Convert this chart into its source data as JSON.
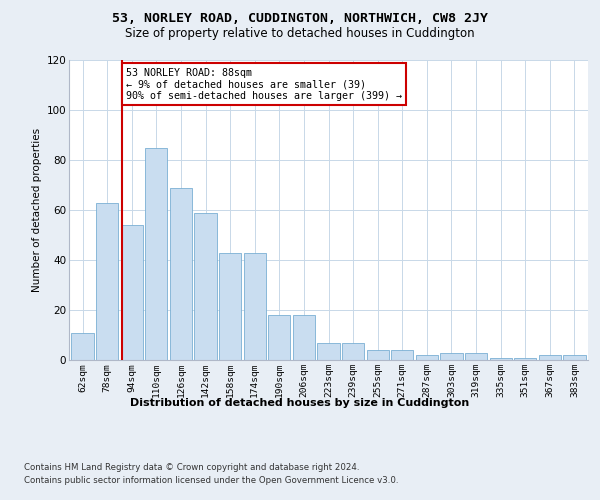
{
  "title": "53, NORLEY ROAD, CUDDINGTON, NORTHWICH, CW8 2JY",
  "subtitle": "Size of property relative to detached houses in Cuddington",
  "xlabel": "Distribution of detached houses by size in Cuddington",
  "ylabel": "Number of detached properties",
  "categories": [
    "62sqm",
    "78sqm",
    "94sqm",
    "110sqm",
    "126sqm",
    "142sqm",
    "158sqm",
    "174sqm",
    "190sqm",
    "206sqm",
    "223sqm",
    "239sqm",
    "255sqm",
    "271sqm",
    "287sqm",
    "303sqm",
    "319sqm",
    "335sqm",
    "351sqm",
    "367sqm",
    "383sqm"
  ],
  "values": [
    11,
    63,
    54,
    85,
    69,
    59,
    43,
    43,
    18,
    18,
    7,
    7,
    4,
    4,
    2,
    3,
    3,
    1,
    1,
    2,
    2
  ],
  "bar_color": "#c9ddf0",
  "bar_edge_color": "#7aafd4",
  "vline_color": "#cc0000",
  "annotation_line1": "53 NORLEY ROAD: 88sqm",
  "annotation_line2": "← 9% of detached houses are smaller (39)",
  "annotation_line3": "90% of semi-detached houses are larger (399) →",
  "annotation_box_color": "white",
  "annotation_box_edge": "#cc0000",
  "ylim": [
    0,
    120
  ],
  "yticks": [
    0,
    20,
    40,
    60,
    80,
    100,
    120
  ],
  "footer1": "Contains HM Land Registry data © Crown copyright and database right 2024.",
  "footer2": "Contains public sector information licensed under the Open Government Licence v3.0.",
  "bg_color": "#e8eef5",
  "plot_bg_color": "white",
  "grid_color": "#c8d8e8"
}
